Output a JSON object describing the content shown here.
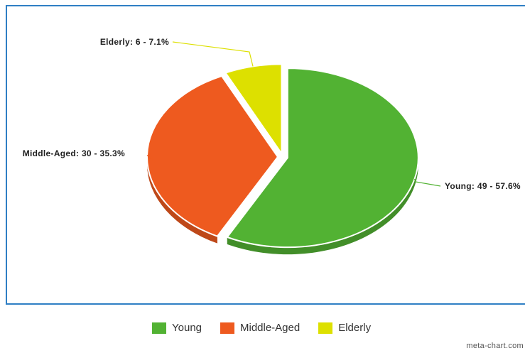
{
  "chart_data": {
    "type": "pie",
    "title": "",
    "three_d": true,
    "exploded": true,
    "legend_position": "bottom",
    "slices": [
      {
        "name": "Young",
        "value": 49,
        "percent": 57.6,
        "color": "#52b233",
        "label": "Young: 49 - 57.6%"
      },
      {
        "name": "Middle-Aged",
        "value": 30,
        "percent": 35.3,
        "color": "#ee5a1f",
        "label": "Middle-Aged: 30 - 35.3%"
      },
      {
        "name": "Elderly",
        "value": 6,
        "percent": 7.1,
        "color": "#dde000",
        "label": "Elderly: 6 - 7.1%"
      }
    ]
  },
  "legend": {
    "items": [
      {
        "label": "Young",
        "color": "#52b233"
      },
      {
        "label": "Middle-Aged",
        "color": "#ee5a1f"
      },
      {
        "label": "Elderly",
        "color": "#dde000"
      }
    ]
  },
  "credit": "meta-chart.com"
}
